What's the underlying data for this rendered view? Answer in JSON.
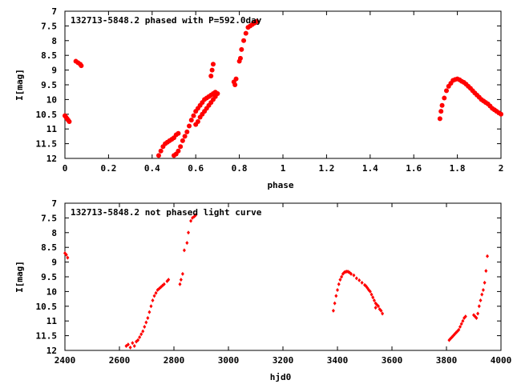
{
  "colors": {
    "background": "#ffffff",
    "axes": "#000000",
    "points": "#ff0000"
  },
  "chart_data": [
    {
      "type": "scatter",
      "title": "132713-5848.2 phased with P=592.0day",
      "xlabel": "phase",
      "ylabel": "I[mag]",
      "xlim": [
        0,
        2
      ],
      "ylim": [
        7,
        12
      ],
      "y_inverted": true,
      "grid": false,
      "legend": "none",
      "marker": "filled circle",
      "x_ticks": [
        "0",
        "0.2",
        "0.4",
        "0.6",
        "0.8",
        "1",
        "1.2",
        "1.4",
        "1.6",
        "1.8",
        "2"
      ],
      "y_ticks": [
        "7",
        "7.5",
        "8",
        "8.5",
        "9",
        "9.5",
        "10",
        "10.5",
        "11",
        "11.5",
        "12"
      ],
      "x": [
        0.0,
        0.005,
        0.01,
        0.015,
        0.02,
        0.05,
        0.06,
        0.07,
        0.075,
        0.43,
        0.44,
        0.45,
        0.46,
        0.47,
        0.48,
        0.49,
        0.5,
        0.51,
        0.52,
        0.5,
        0.51,
        0.52,
        0.53,
        0.54,
        0.55,
        0.56,
        0.57,
        0.58,
        0.59,
        0.6,
        0.61,
        0.62,
        0.63,
        0.64,
        0.65,
        0.66,
        0.67,
        0.68,
        0.69,
        0.6,
        0.61,
        0.62,
        0.63,
        0.64,
        0.65,
        0.66,
        0.67,
        0.68,
        0.69,
        0.7,
        0.67,
        0.675,
        0.68,
        0.775,
        0.78,
        0.785,
        0.8,
        0.805,
        0.81,
        0.82,
        0.83,
        0.84,
        0.85,
        0.86,
        0.87,
        0.88,
        1.72,
        1.725,
        1.73,
        1.74,
        1.75,
        1.76,
        1.77,
        1.78,
        1.79,
        1.8,
        1.81,
        1.82,
        1.83,
        1.84,
        1.85,
        1.86,
        1.87,
        1.88,
        1.89,
        1.9,
        1.91,
        1.92,
        1.93,
        1.94,
        1.95,
        1.96,
        1.97,
        1.98,
        1.99,
        2.0
      ],
      "y": [
        10.55,
        10.6,
        10.65,
        10.7,
        10.75,
        8.7,
        8.75,
        8.8,
        8.85,
        11.9,
        11.75,
        11.6,
        11.5,
        11.45,
        11.4,
        11.35,
        11.3,
        11.2,
        11.15,
        11.9,
        11.85,
        11.75,
        11.6,
        11.4,
        11.25,
        11.1,
        10.9,
        10.7,
        10.55,
        10.4,
        10.3,
        10.2,
        10.1,
        10.0,
        9.95,
        9.9,
        9.85,
        9.8,
        9.75,
        10.85,
        10.75,
        10.6,
        10.5,
        10.4,
        10.3,
        10.2,
        10.1,
        10.0,
        9.9,
        9.8,
        9.2,
        9.0,
        8.8,
        9.4,
        9.5,
        9.3,
        8.7,
        8.6,
        8.3,
        8.0,
        7.75,
        7.55,
        7.5,
        7.45,
        7.4,
        7.35,
        10.65,
        10.4,
        10.2,
        9.95,
        9.7,
        9.55,
        9.45,
        9.35,
        9.32,
        9.3,
        9.33,
        9.38,
        9.42,
        9.48,
        9.55,
        9.62,
        9.7,
        9.78,
        9.85,
        9.92,
        10.0,
        10.05,
        10.1,
        10.15,
        10.22,
        10.3,
        10.35,
        10.4,
        10.45,
        10.5
      ]
    },
    {
      "type": "scatter",
      "title": "132713-5848.2 not phased light curve",
      "xlabel": "hjd0",
      "ylabel": "I[mag]",
      "xlim": [
        2400,
        4000
      ],
      "ylim": [
        7,
        12
      ],
      "y_inverted": true,
      "grid": false,
      "legend": "none",
      "marker": "small diamond",
      "x_ticks": [
        "2400",
        "2600",
        "2800",
        "3000",
        "3200",
        "3400",
        "3600",
        "3800",
        "4000"
      ],
      "y_ticks": [
        "7",
        "7.5",
        "8",
        "8.5",
        "9",
        "9.5",
        "10",
        "10.5",
        "11",
        "11.5",
        "12"
      ],
      "x": [
        2400,
        2405,
        2410,
        2625,
        2632,
        2640,
        2648,
        2655,
        2662,
        2668,
        2674,
        2680,
        2686,
        2692,
        2698,
        2704,
        2710,
        2716,
        2722,
        2728,
        2734,
        2740,
        2746,
        2752,
        2758,
        2764,
        2775,
        2780,
        2822,
        2826,
        2832,
        2838,
        2848,
        2853,
        2862,
        2868,
        2875,
        2880,
        3385,
        3390,
        3395,
        3400,
        3405,
        3410,
        3415,
        3420,
        3425,
        3430,
        3435,
        3440,
        3445,
        3450,
        3460,
        3470,
        3480,
        3490,
        3500,
        3505,
        3510,
        3515,
        3520,
        3525,
        3530,
        3535,
        3540,
        3545,
        3550,
        3555,
        3560,
        3565,
        3540,
        3810,
        3815,
        3820,
        3825,
        3830,
        3835,
        3840,
        3845,
        3850,
        3855,
        3860,
        3865,
        3870,
        3900,
        3905,
        3910,
        3915,
        3920,
        3925,
        3930,
        3935,
        3940,
        3945,
        3950
      ],
      "y": [
        8.7,
        8.75,
        8.85,
        11.85,
        11.8,
        11.9,
        11.75,
        11.85,
        11.7,
        11.65,
        11.55,
        11.45,
        11.35,
        11.2,
        11.05,
        10.9,
        10.7,
        10.5,
        10.3,
        10.15,
        10.05,
        9.95,
        9.9,
        9.85,
        9.8,
        9.75,
        9.65,
        9.6,
        9.75,
        9.6,
        9.4,
        8.6,
        8.35,
        8.0,
        7.6,
        7.5,
        7.45,
        7.4,
        10.65,
        10.4,
        10.15,
        9.95,
        9.75,
        9.6,
        9.5,
        9.4,
        9.35,
        9.33,
        9.32,
        9.33,
        9.36,
        9.4,
        9.45,
        9.55,
        9.62,
        9.7,
        9.78,
        9.82,
        9.88,
        9.95,
        10.0,
        10.1,
        10.2,
        10.3,
        10.4,
        10.45,
        10.5,
        10.6,
        10.65,
        10.75,
        10.55,
        11.65,
        11.6,
        11.55,
        11.5,
        11.45,
        11.4,
        11.35,
        11.3,
        11.2,
        11.1,
        11.0,
        10.9,
        10.85,
        10.8,
        10.85,
        10.9,
        10.75,
        10.5,
        10.3,
        10.1,
        9.95,
        9.7,
        9.3,
        8.8
      ]
    }
  ]
}
